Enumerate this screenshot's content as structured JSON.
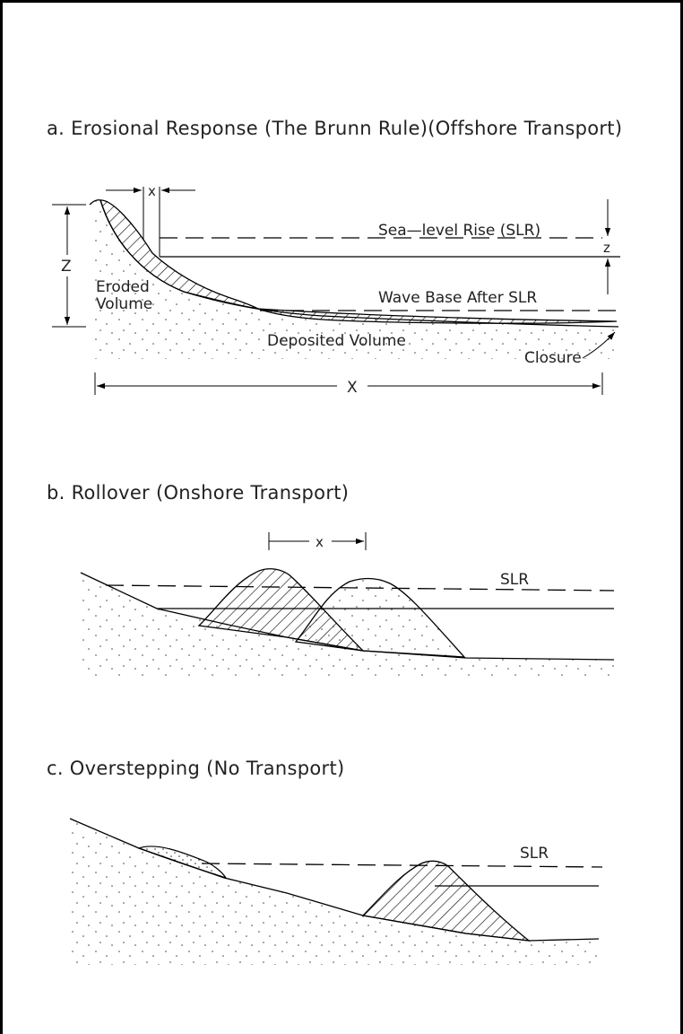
{
  "panel_a": {
    "title": "a.   Erosional Response (The Brunn Rule)(Offshore Transport)",
    "slr_label": "Sea—level Rise (SLR)",
    "wave_base_label": "Wave Base After SLR",
    "eroded_label_1": "Eroded",
    "eroded_label_2": "Volume",
    "deposited_label": "Deposited Volume",
    "closure_label": "Closure",
    "dim_x_small": "x",
    "dim_z_small": "z",
    "dim_z_large": "Z",
    "dim_x_large": "X"
  },
  "panel_b": {
    "title": "b.   Rollover (Onshore Transport)",
    "slr_label": "SLR",
    "dim_x": "x"
  },
  "panel_c": {
    "title": "c.   Overstepping (No Transport)",
    "slr_label": "SLR"
  }
}
